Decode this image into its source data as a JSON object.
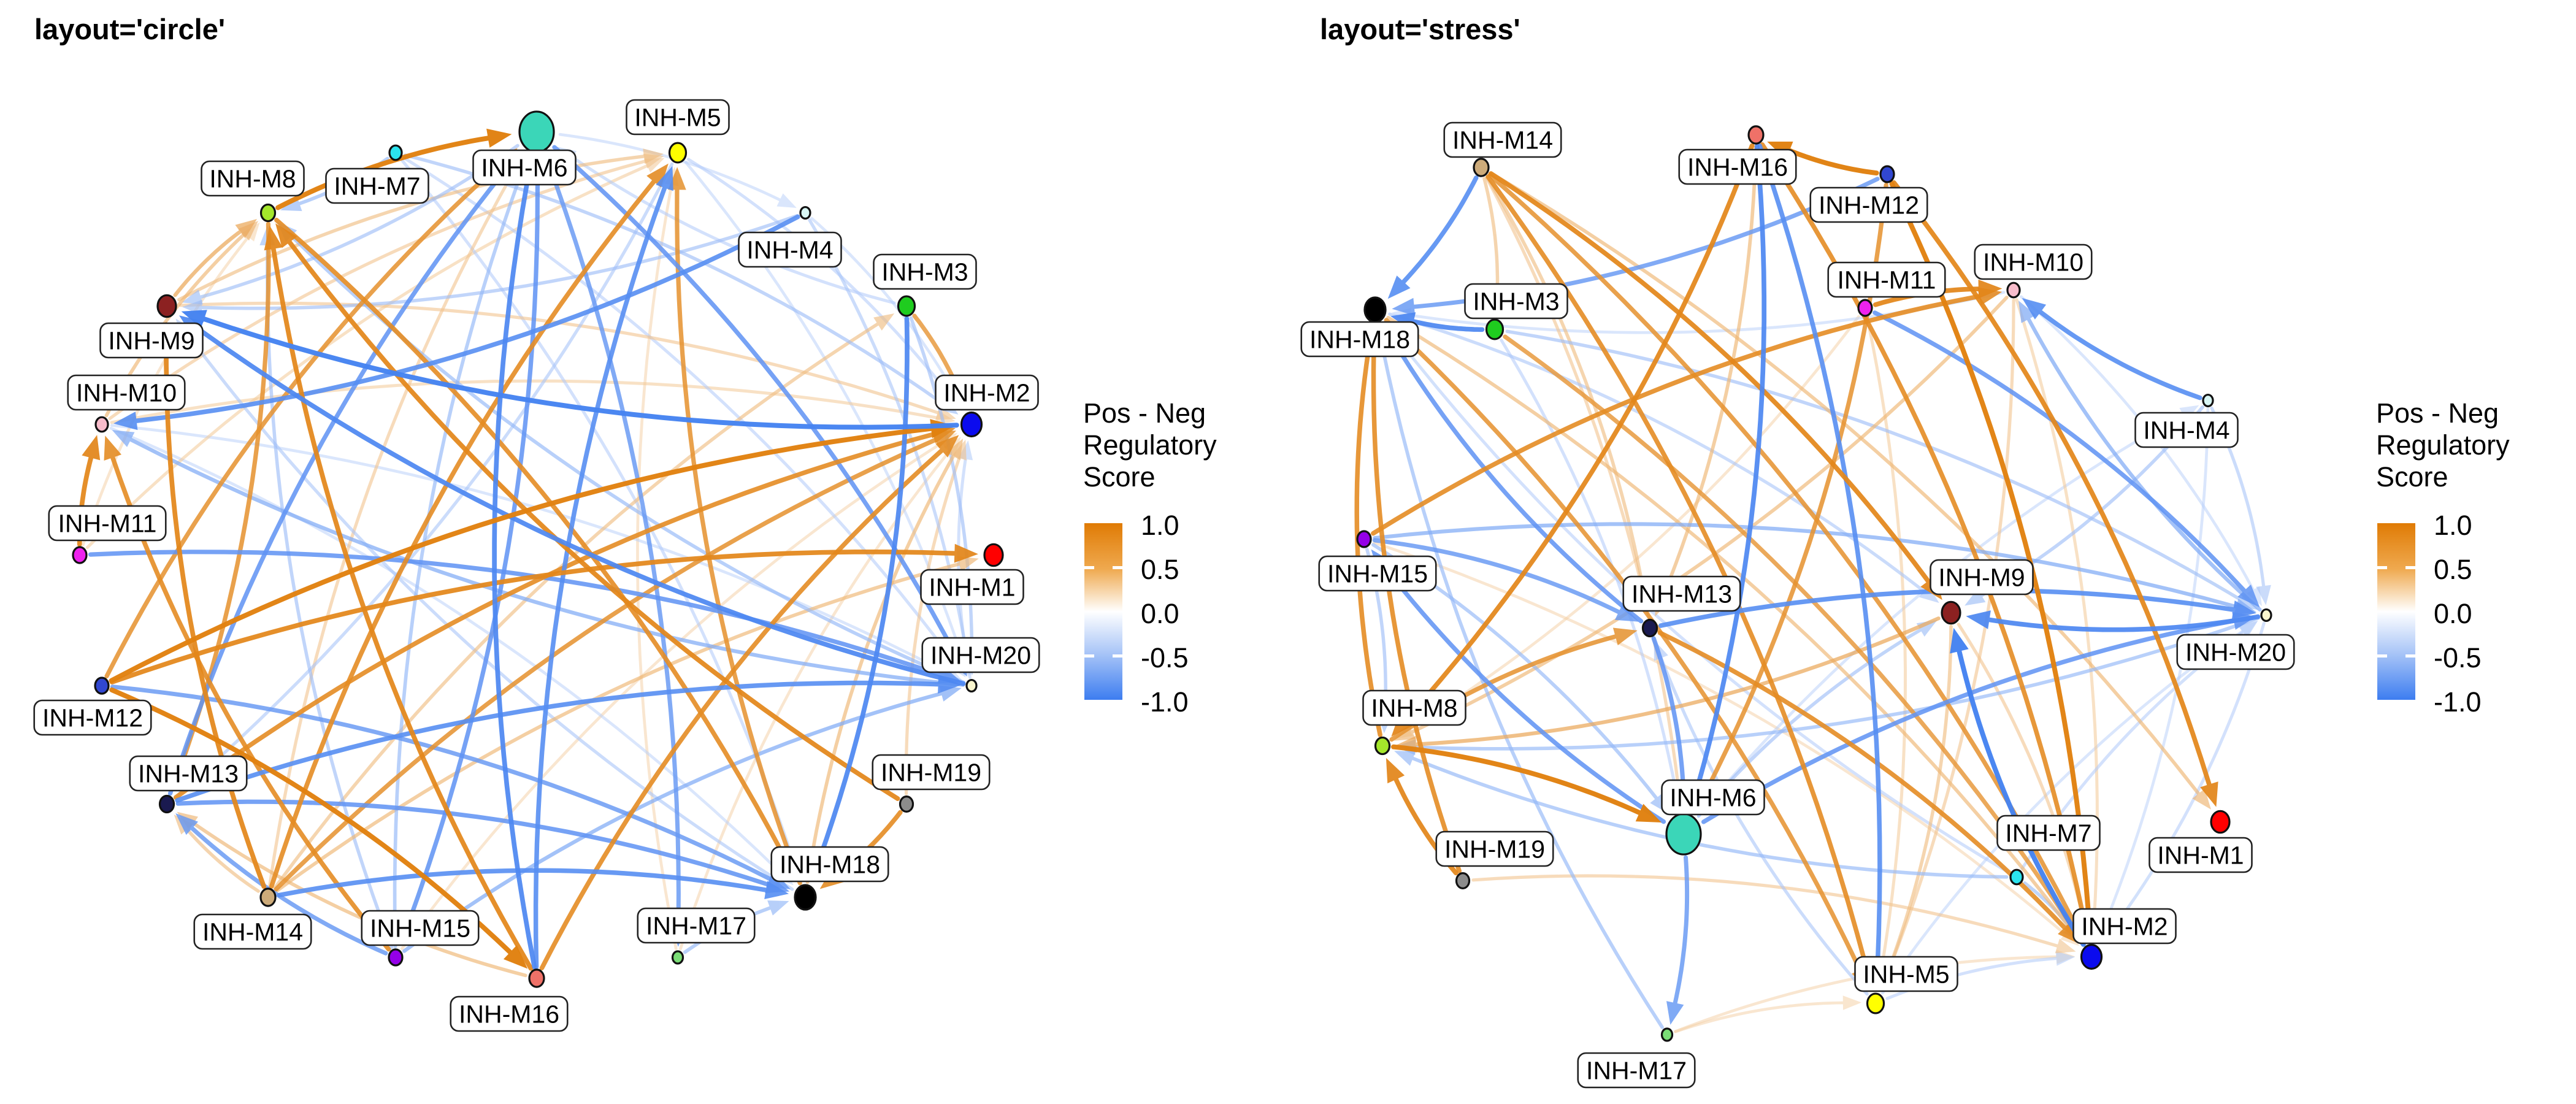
{
  "panels": [
    {
      "title": "layout='circle'",
      "layout_key": "circle"
    },
    {
      "title": "layout='stress'",
      "layout_key": "stress"
    }
  ],
  "legend": {
    "title_lines": [
      "Pos - Neg",
      "Regulatory",
      "Score"
    ],
    "ticks": [
      "1.0",
      "0.5",
      "0.0",
      "-0.5",
      "-1.0"
    ],
    "top_color": "#E07B04",
    "mid_color": "#FFFFFF",
    "bottom_color": "#3D7DF0"
  },
  "style": {
    "edge_pos": "#E07B04",
    "edge_neg": "#3D7DF0",
    "node_border": "#111111",
    "label_border": "#222222",
    "label_fill": "#FFFFFF"
  },
  "nodes": [
    {
      "id": "M1",
      "label": "INH-M1",
      "color": "#FF0000",
      "size": 30
    },
    {
      "id": "M2",
      "label": "INH-M2",
      "color": "#0B0BEE",
      "size": 33
    },
    {
      "id": "M3",
      "label": "INH-M3",
      "color": "#1FCC1F",
      "size": 27
    },
    {
      "id": "M4",
      "label": "INH-M4",
      "color": "#D8F6F4",
      "size": 16
    },
    {
      "id": "M5",
      "label": "INH-M5",
      "color": "#FFFF00",
      "size": 27
    },
    {
      "id": "M6",
      "label": "INH-M6",
      "color": "#3BD6B8",
      "size": 56
    },
    {
      "id": "M7",
      "label": "INH-M7",
      "color": "#2BE3EE",
      "size": 20
    },
    {
      "id": "M8",
      "label": "INH-M8",
      "color": "#A4E62B",
      "size": 23
    },
    {
      "id": "M9",
      "label": "INH-M9",
      "color": "#8C2121",
      "size": 30
    },
    {
      "id": "M10",
      "label": "INH-M10",
      "color": "#F8BCCB",
      "size": 20
    },
    {
      "id": "M11",
      "label": "INH-M11",
      "color": "#EE22EE",
      "size": 22
    },
    {
      "id": "M12",
      "label": "INH-M12",
      "color": "#3147D1",
      "size": 22
    },
    {
      "id": "M13",
      "label": "INH-M13",
      "color": "#1A1A50",
      "size": 23
    },
    {
      "id": "M14",
      "label": "INH-M14",
      "color": "#CDAB7A",
      "size": 24
    },
    {
      "id": "M15",
      "label": "INH-M15",
      "color": "#9400E8",
      "size": 22
    },
    {
      "id": "M16",
      "label": "INH-M16",
      "color": "#EF7168",
      "size": 24
    },
    {
      "id": "M17",
      "label": "INH-M17",
      "color": "#7ADD76",
      "size": 17
    },
    {
      "id": "M18",
      "label": "INH-M18",
      "color": "#000000",
      "size": 34
    },
    {
      "id": "M19",
      "label": "INH-M19",
      "color": "#8C8C8C",
      "size": 21
    },
    {
      "id": "M20",
      "label": "INH-M20",
      "color": "#FAF6CE",
      "size": 16
    }
  ],
  "layouts": {
    "circle": {
      "M6": [
        875,
        215,
        -20,
        58
      ],
      "M5": [
        1105,
        249,
        0,
        -58
      ],
      "M4": [
        1313,
        347,
        -25,
        60
      ],
      "M3": [
        1478,
        499,
        30,
        -56
      ],
      "M2": [
        1584,
        692,
        25,
        -52
      ],
      "M1": [
        1620,
        905,
        -35,
        52
      ],
      "M20": [
        1584,
        1118,
        15,
        -50
      ],
      "M19": [
        1478,
        1311,
        40,
        -52
      ],
      "M18": [
        1313,
        1463,
        40,
        -54
      ],
      "M17": [
        1105,
        1561,
        30,
        -52
      ],
      "M16": [
        875,
        1595,
        -45,
        58
      ],
      "M15": [
        645,
        1561,
        40,
        -48
      ],
      "M14": [
        437,
        1463,
        -25,
        56
      ],
      "M13": [
        272,
        1311,
        35,
        -50
      ],
      "M12": [
        166,
        1118,
        -15,
        52
      ],
      "M11": [
        130,
        905,
        45,
        -52
      ],
      "M10": [
        166,
        692,
        40,
        -52
      ],
      "M9": [
        272,
        499,
        -25,
        56
      ],
      "M8": [
        437,
        347,
        -25,
        -56
      ],
      "M7": [
        645,
        249,
        -30,
        54
      ]
    },
    "stress": {
      "M14": [
        2415,
        273,
        35,
        -45
      ],
      "M16": [
        2863,
        220,
        -30,
        52
      ],
      "M12": [
        3077,
        284,
        -30,
        50
      ],
      "M18": [
        2242,
        505,
        -25,
        48
      ],
      "M3": [
        2437,
        537,
        35,
        -46
      ],
      "M11": [
        3041,
        502,
        35,
        -46
      ],
      "M10": [
        3283,
        473,
        32,
        -46
      ],
      "M4": [
        3600,
        653,
        -35,
        48
      ],
      "M15": [
        2224,
        879,
        22,
        56
      ],
      "M13": [
        2690,
        1024,
        52,
        -56
      ],
      "M9": [
        3181,
        999,
        50,
        -58
      ],
      "M20": [
        3695,
        1003,
        -50,
        60
      ],
      "M8": [
        2254,
        1216,
        52,
        -62
      ],
      "M19": [
        2385,
        1436,
        52,
        -52
      ],
      "M6": [
        2745,
        1360,
        48,
        -60
      ],
      "M7": [
        3288,
        1430,
        52,
        -72
      ],
      "M1": [
        3620,
        1340,
        -32,
        54
      ],
      "M2": [
        3410,
        1560,
        54,
        -50
      ],
      "M5": [
        3058,
        1636,
        50,
        -48
      ],
      "M17": [
        2718,
        1687,
        -50,
        58
      ]
    }
  },
  "edges": [
    [
      "M8",
      "M6",
      0.95
    ],
    [
      "M12",
      "M16",
      0.95
    ],
    [
      "M12",
      "M2",
      0.95
    ],
    [
      "M16",
      "M8",
      0.9
    ],
    [
      "M14",
      "M9",
      0.9
    ],
    [
      "M11",
      "M10",
      0.9
    ],
    [
      "M19",
      "M8",
      0.9
    ],
    [
      "M12",
      "M1",
      0.9
    ],
    [
      "M13",
      "M2",
      0.85
    ],
    [
      "M14",
      "M5",
      0.85
    ],
    [
      "M16",
      "M2",
      0.85
    ],
    [
      "M15",
      "M10",
      0.85
    ],
    [
      "M19",
      "M18",
      0.85
    ],
    [
      "M8",
      "M18",
      0.85
    ],
    [
      "M12",
      "M6",
      0.8
    ],
    [
      "M18",
      "M5",
      0.8
    ],
    [
      "M8",
      "M13",
      0.8
    ],
    [
      "M14",
      "M2",
      0.8
    ],
    [
      "M3",
      "M2",
      0.75
    ],
    [
      "M2",
      "M9",
      -0.95
    ],
    [
      "M20",
      "M9",
      -0.9
    ],
    [
      "M16",
      "M6",
      -0.9
    ],
    [
      "M3",
      "M18",
      -0.9
    ],
    [
      "M14",
      "M18",
      -0.85
    ],
    [
      "M13",
      "M20",
      -0.85
    ],
    [
      "M16",
      "M5",
      -0.85
    ],
    [
      "M4",
      "M10",
      -0.85
    ],
    [
      "M6",
      "M15",
      -0.8
    ],
    [
      "M13",
      "M6",
      -0.8
    ],
    [
      "M13",
      "M18",
      -0.8
    ],
    [
      "M11",
      "M20",
      -0.8
    ],
    [
      "M6",
      "M20",
      -0.8
    ],
    [
      "M6",
      "M17",
      -0.75
    ],
    [
      "M15",
      "M13",
      -0.75
    ],
    [
      "M12",
      "M18",
      -0.75
    ],
    [
      "M9",
      "M8",
      0.6
    ],
    [
      "M18",
      "M2",
      0.5
    ],
    [
      "M10",
      "M8",
      0.5
    ],
    [
      "M16",
      "M13",
      0.5
    ],
    [
      "M14",
      "M1",
      0.5
    ],
    [
      "M9",
      "M5",
      0.45
    ],
    [
      "M14",
      "M3",
      0.45
    ],
    [
      "M14",
      "M13",
      0.45
    ],
    [
      "M19",
      "M2",
      0.4
    ],
    [
      "M9",
      "M2",
      0.4
    ],
    [
      "M10",
      "M5",
      0.4
    ],
    [
      "M14",
      "M6",
      0.4
    ],
    [
      "M15",
      "M20",
      -0.6
    ],
    [
      "M20",
      "M10",
      -0.6
    ],
    [
      "M20",
      "M8",
      -0.5
    ],
    [
      "M15",
      "M8",
      -0.45
    ],
    [
      "M7",
      "M8",
      -0.5
    ],
    [
      "M17",
      "M18",
      -0.5
    ],
    [
      "M7",
      "M2",
      -0.45
    ],
    [
      "M6",
      "M9",
      -0.45
    ],
    [
      "M18",
      "M9",
      -0.4
    ],
    [
      "M5",
      "M13",
      -0.4
    ],
    [
      "M3",
      "M20",
      -0.45
    ],
    [
      "M4",
      "M20",
      -0.4
    ],
    [
      "M15",
      "M6",
      -0.5
    ],
    [
      "M4",
      "M9",
      -0.45
    ],
    [
      "M11",
      "M5",
      0.35
    ],
    [
      "M10",
      "M2",
      0.35
    ],
    [
      "M17",
      "M2",
      0.3
    ],
    [
      "M15",
      "M2",
      0.3
    ],
    [
      "M17",
      "M5",
      0.3
    ],
    [
      "M11",
      "M8",
      0.3
    ],
    [
      "M5",
      "M2",
      -0.35
    ],
    [
      "M4",
      "M2",
      -0.3
    ],
    [
      "M20",
      "M2",
      -0.35
    ],
    [
      "M7",
      "M20",
      -0.35
    ],
    [
      "M10",
      "M20",
      -0.3
    ],
    [
      "M3",
      "M6",
      -0.35
    ],
    [
      "M6",
      "M4",
      -0.3
    ],
    [
      "M7",
      "M18",
      -0.35
    ],
    [
      "M10",
      "M18",
      -0.3
    ],
    [
      "M5",
      "M20",
      -0.3
    ]
  ]
}
